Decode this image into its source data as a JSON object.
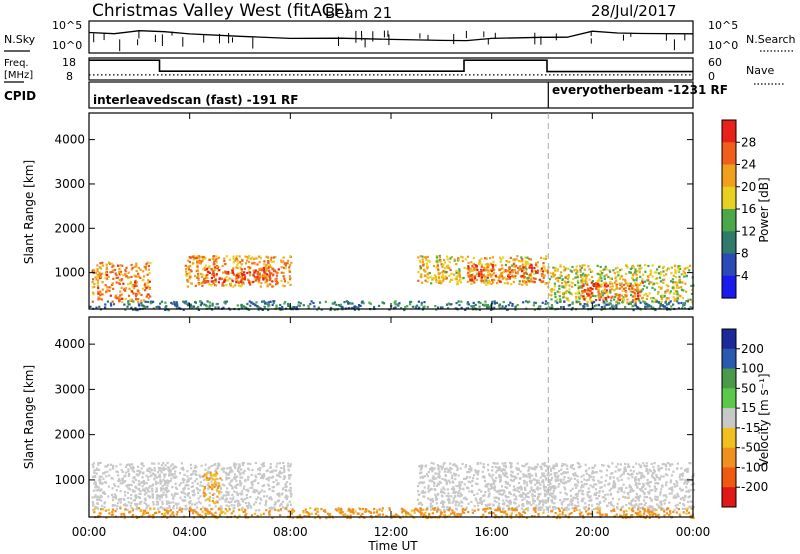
{
  "title": "Christmas Valley West (fitACF)",
  "beam_label": "Beam 21",
  "date": "28/Jul/2017",
  "top_panel": {
    "left_label": "N.Sky",
    "right_label": "N.Search",
    "left_ticks": [
      "10^5",
      "10^0"
    ],
    "right_ticks": [
      "10^5",
      "10^0"
    ]
  },
  "freq_panel": {
    "left_label_1": "Freq.",
    "left_label_2": "[MHz]",
    "right_label": "Nave",
    "left_ticks": [
      "18",
      "8"
    ],
    "right_ticks": [
      "60",
      "0"
    ]
  },
  "cpid": {
    "label": "CPID",
    "segments": [
      "interleavedscan (fast) -191 RF",
      "everyotherbeam -1231 RF"
    ]
  },
  "power_colorbar": {
    "label": "Power [dB]",
    "ticks": [
      "28",
      "24",
      "20",
      "16",
      "12",
      "8",
      "4"
    ],
    "colors": [
      "#e8221a",
      "#f0601c",
      "#f0a01e",
      "#e8d020",
      "#4aa84a",
      "#2f7a6a",
      "#2a4ab8",
      "#1a1aee"
    ]
  },
  "velocity_colorbar": {
    "label": "Velocity [m s⁻¹]",
    "ticks": [
      "200",
      "100",
      "50",
      "15",
      "-15",
      "-50",
      "-100",
      "-200"
    ],
    "colors": [
      "#1a2a9a",
      "#2a5ab0",
      "#4a9a4a",
      "#5ac84a",
      "#c8c8c8",
      "#f0c020",
      "#f09020",
      "#f05a10",
      "#e01818"
    ]
  },
  "axes": {
    "ylabel": "Slant Range [km]",
    "xlabel": "Time UT",
    "yticks": [
      "4000",
      "3000",
      "2000",
      "1000"
    ],
    "xticks": [
      "00:00",
      "04:00",
      "08:00",
      "12:00",
      "16:00",
      "20:00",
      "00:00"
    ]
  },
  "chart_data": {
    "type": "heatmap",
    "title": "Christmas Valley West (fitACF)",
    "xlabel": "Time UT",
    "ylabel": "Slant Range [km]",
    "xlim_hours": [
      0,
      24
    ],
    "ylim_km": [
      180,
      4600
    ],
    "mode_change_hour": 18.25,
    "nsky_trace": [
      [
        0,
        3.2
      ],
      [
        1,
        3.0
      ],
      [
        2,
        3.6
      ],
      [
        3,
        3.4
      ],
      [
        4,
        3.0
      ],
      [
        6,
        2.6
      ],
      [
        8,
        2.4
      ],
      [
        10,
        2.2
      ],
      [
        12,
        2.1
      ],
      [
        14,
        2.0
      ],
      [
        15,
        2.0
      ],
      [
        16,
        2.2
      ],
      [
        18,
        2.4
      ],
      [
        19,
        2.6
      ],
      [
        20,
        3.4
      ],
      [
        21,
        3.2
      ],
      [
        22,
        3.0
      ],
      [
        24,
        3.1
      ]
    ],
    "freq_mhz": [
      [
        0,
        17.0
      ],
      [
        2.8,
        17.0
      ],
      [
        2.8,
        12.0
      ],
      [
        14.9,
        12.0
      ],
      [
        14.9,
        17.0
      ],
      [
        18.2,
        17.0
      ],
      [
        18.2,
        11.8
      ],
      [
        24,
        11.8
      ]
    ],
    "nave": [
      [
        0,
        14
      ],
      [
        24,
        14
      ]
    ],
    "power_regions": [
      {
        "t0": 0.1,
        "t1": 2.4,
        "r0": 350,
        "r1": 1250,
        "power_db": 24
      },
      {
        "t0": 3.8,
        "t1": 8.0,
        "r0": 700,
        "r1": 1400,
        "power_db": 22
      },
      {
        "t0": 4.5,
        "t1": 7.5,
        "r0": 800,
        "r1": 1150,
        "power_db": 28
      },
      {
        "t0": 13.0,
        "t1": 18.2,
        "r0": 750,
        "r1": 1400,
        "power_db": 20
      },
      {
        "t0": 15.0,
        "t1": 18.0,
        "r0": 800,
        "r1": 1200,
        "power_db": 26
      },
      {
        "t0": 18.2,
        "t1": 24,
        "r0": 350,
        "r1": 1200,
        "power_db": 18
      },
      {
        "t0": 19.5,
        "t1": 22.0,
        "r0": 400,
        "r1": 800,
        "power_db": 26
      },
      {
        "t0": 0,
        "t1": 24,
        "r0": 180,
        "r1": 380,
        "power_db": 10
      }
    ],
    "velocity_regions": [
      {
        "t0": 0.1,
        "t1": 8.0,
        "r0": 350,
        "r1": 1400,
        "velocity": 0
      },
      {
        "t0": 13.0,
        "t1": 24,
        "r0": 350,
        "r1": 1400,
        "velocity": 0
      },
      {
        "t0": 4.5,
        "t1": 5.2,
        "r0": 500,
        "r1": 1200,
        "velocity": -50
      },
      {
        "t0": 0,
        "t1": 24,
        "r0": 180,
        "r1": 400,
        "velocity": -60
      }
    ]
  }
}
